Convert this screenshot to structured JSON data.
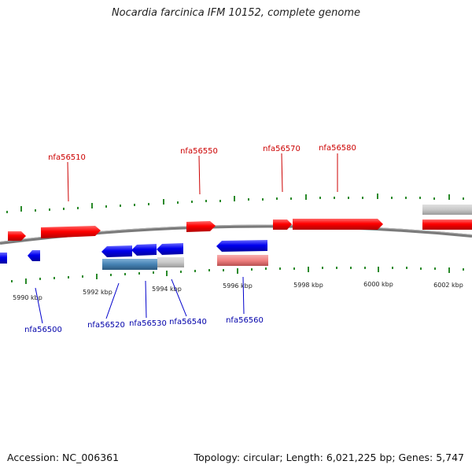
{
  "title": "Nocardia farcinica IFM 10152, complete genome",
  "footer": {
    "accession": "Accession: NC_006361",
    "summary": "Topology: circular; Length: 6,021,225 bp; Genes: 5,747"
  },
  "colors": {
    "forward_gene": "#ff0000",
    "reverse_gene": "#0000ee",
    "forward_label": "#cc0000",
    "reverse_label": "#0000aa",
    "backbone": "#808080",
    "tick": "#2a8a2a",
    "pseudo_gray": "#c8c8c8",
    "forward_light": "#f08080",
    "reverse_steel": "#4682b4"
  },
  "scale": {
    "unit": "kbp",
    "labels": [
      "5990 kbp",
      "5992 kbp",
      "5994 kbp",
      "5996 kbp",
      "5998 kbp",
      "6000 kbp",
      "6002 kbp"
    ]
  },
  "forward_labels": [
    "nfa56510",
    "nfa56550",
    "nfa56570",
    "nfa56580"
  ],
  "reverse_labels": [
    "nfa56500",
    "nfa56520",
    "nfa56530",
    "nfa56540",
    "nfa56560"
  ]
}
